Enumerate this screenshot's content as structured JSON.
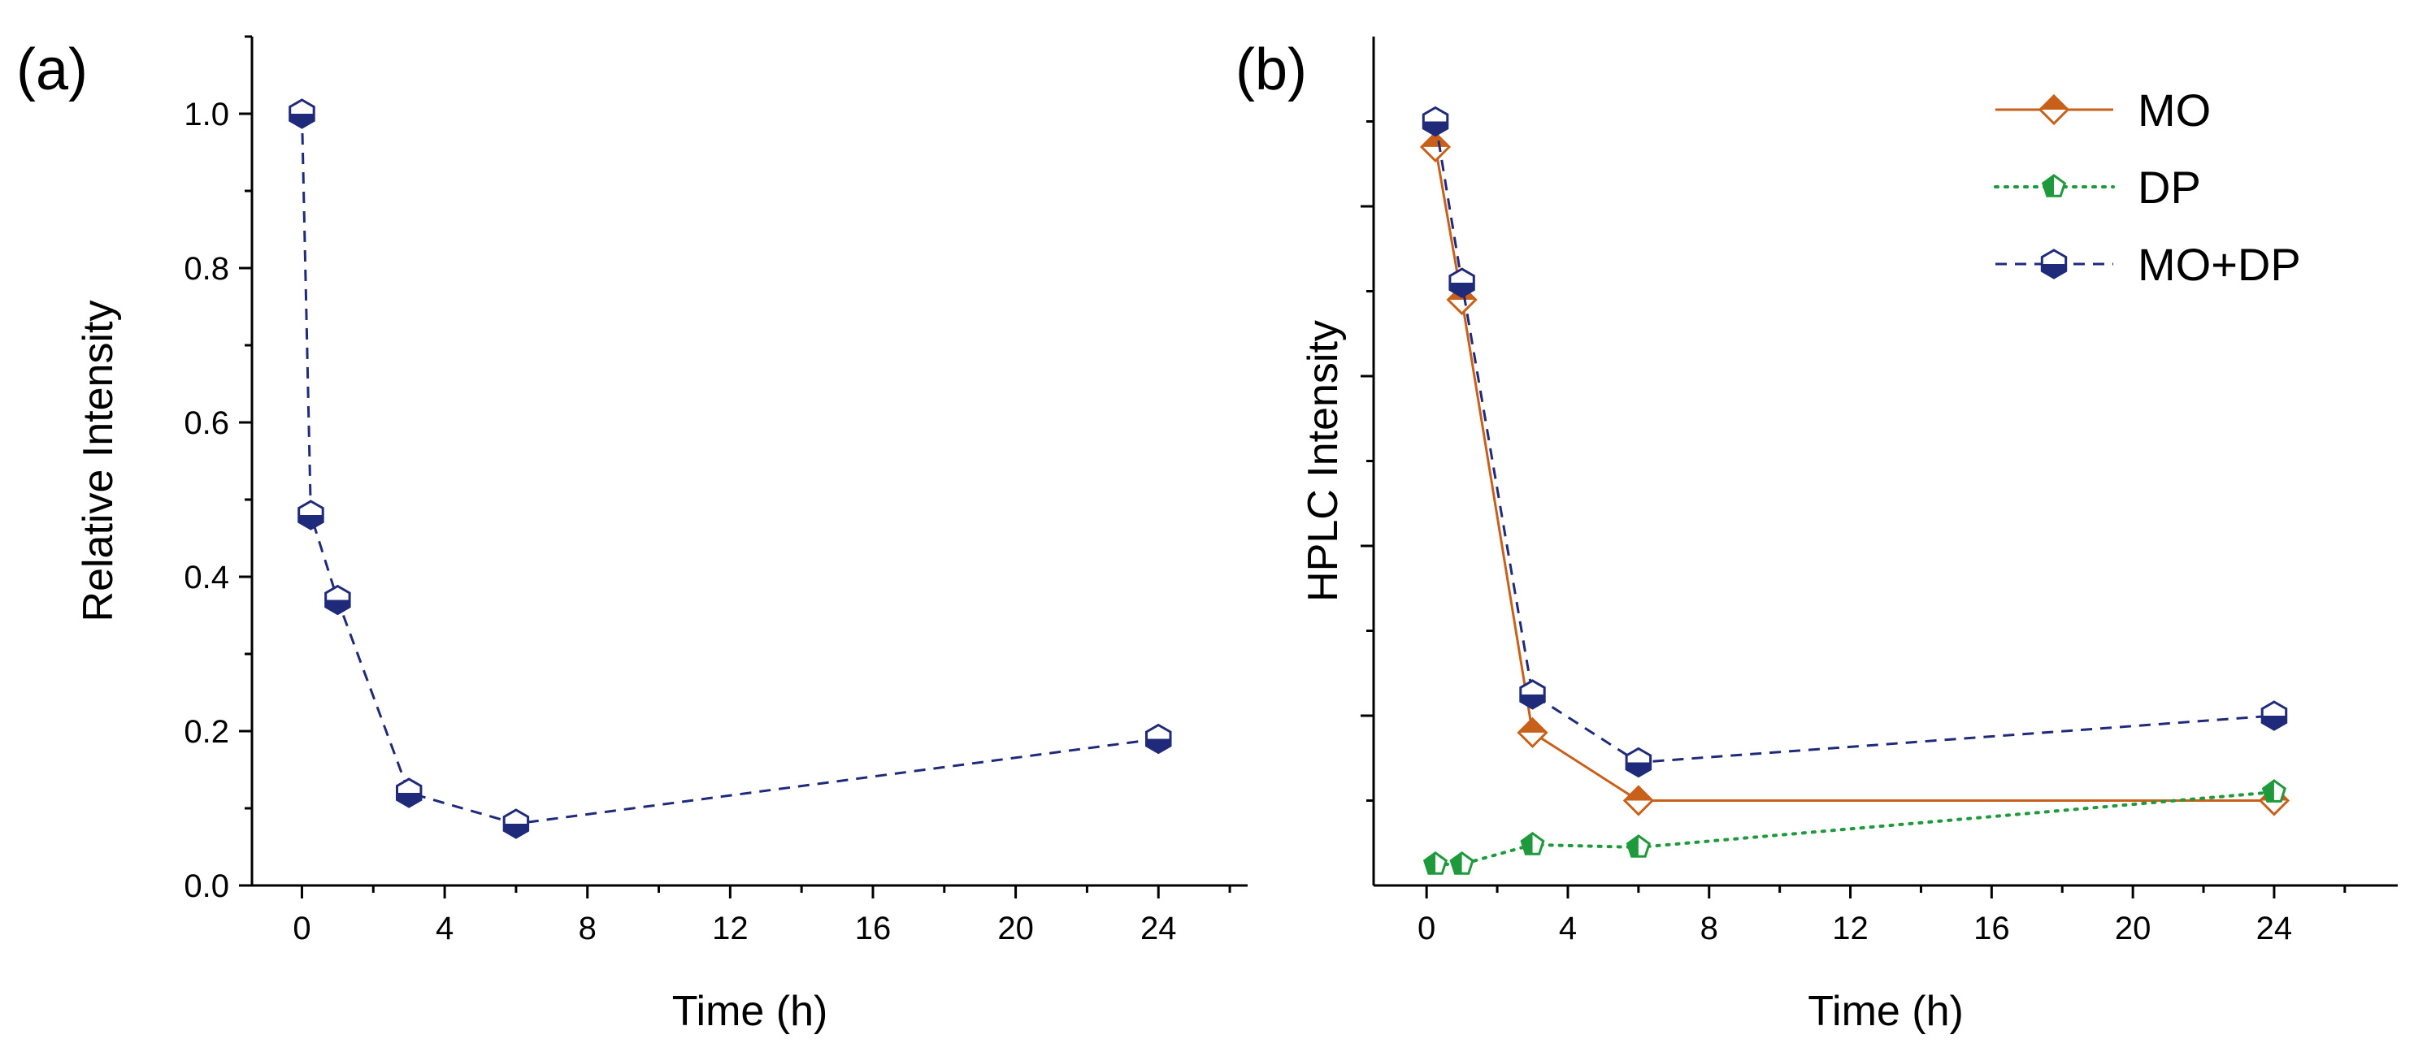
{
  "chart_data": [
    {
      "type": "line",
      "panel_label": "(a)",
      "title": "",
      "xlabel": "Time (h)",
      "ylabel": "Relative Intensity",
      "xlim": [
        -1.4,
        26.5
      ],
      "ylim": [
        0,
        1.1
      ],
      "xticks": [
        0,
        4,
        8,
        12,
        16,
        20,
        24
      ],
      "xtick_labels": [
        "0",
        "4",
        "8",
        "12",
        "16",
        "20",
        "24"
      ],
      "yticks": [
        0.0,
        0.2,
        0.4,
        0.6,
        0.8,
        1.0
      ],
      "ytick_labels": [
        "0.0",
        "0.2",
        "0.4",
        "0.6",
        "0.8",
        "1.0"
      ],
      "grid": false,
      "series": [
        {
          "name": "MO+DP",
          "color": "#1f2a7a",
          "line_style": "dashed",
          "marker": "half-filled-hexagon",
          "x": [
            0,
            0.25,
            1,
            3,
            6,
            24
          ],
          "y": [
            1.0,
            0.48,
            0.37,
            0.12,
            0.08,
            0.19
          ]
        }
      ]
    },
    {
      "type": "line",
      "panel_label": "(b)",
      "title": "",
      "xlabel": "Time (h)",
      "ylabel": "HPLC Intensity",
      "xlim": [
        -1.5,
        27.5
      ],
      "ylim": [
        0,
        1.0
      ],
      "xticks": [
        0,
        4,
        8,
        12,
        16,
        20,
        24
      ],
      "xtick_labels": [
        "0",
        "4",
        "8",
        "12",
        "16",
        "20",
        "24"
      ],
      "yticks_unlabeled": [
        0.2,
        0.4,
        0.6,
        0.8
      ],
      "grid": false,
      "legend_position": "top-right",
      "series": [
        {
          "name": "MO",
          "color": "#c8601a",
          "line_style": "solid",
          "marker": "half-filled-diamond",
          "x": [
            0.25,
            1,
            3,
            6,
            24
          ],
          "y": [
            0.87,
            0.69,
            0.18,
            0.1,
            0.1
          ]
        },
        {
          "name": "DP",
          "color": "#1e9a3c",
          "line_style": "dotted",
          "marker": "half-filled-pentagon",
          "x": [
            0.25,
            1,
            3,
            6,
            24
          ],
          "y": [
            0.025,
            0.025,
            0.048,
            0.045,
            0.11
          ]
        },
        {
          "name": "MO+DP",
          "color": "#1f2a7a",
          "line_style": "dashed",
          "marker": "half-filled-hexagon",
          "x": [
            0.25,
            1,
            3,
            6,
            24
          ],
          "y": [
            0.9,
            0.71,
            0.225,
            0.145,
            0.2
          ]
        }
      ]
    }
  ]
}
